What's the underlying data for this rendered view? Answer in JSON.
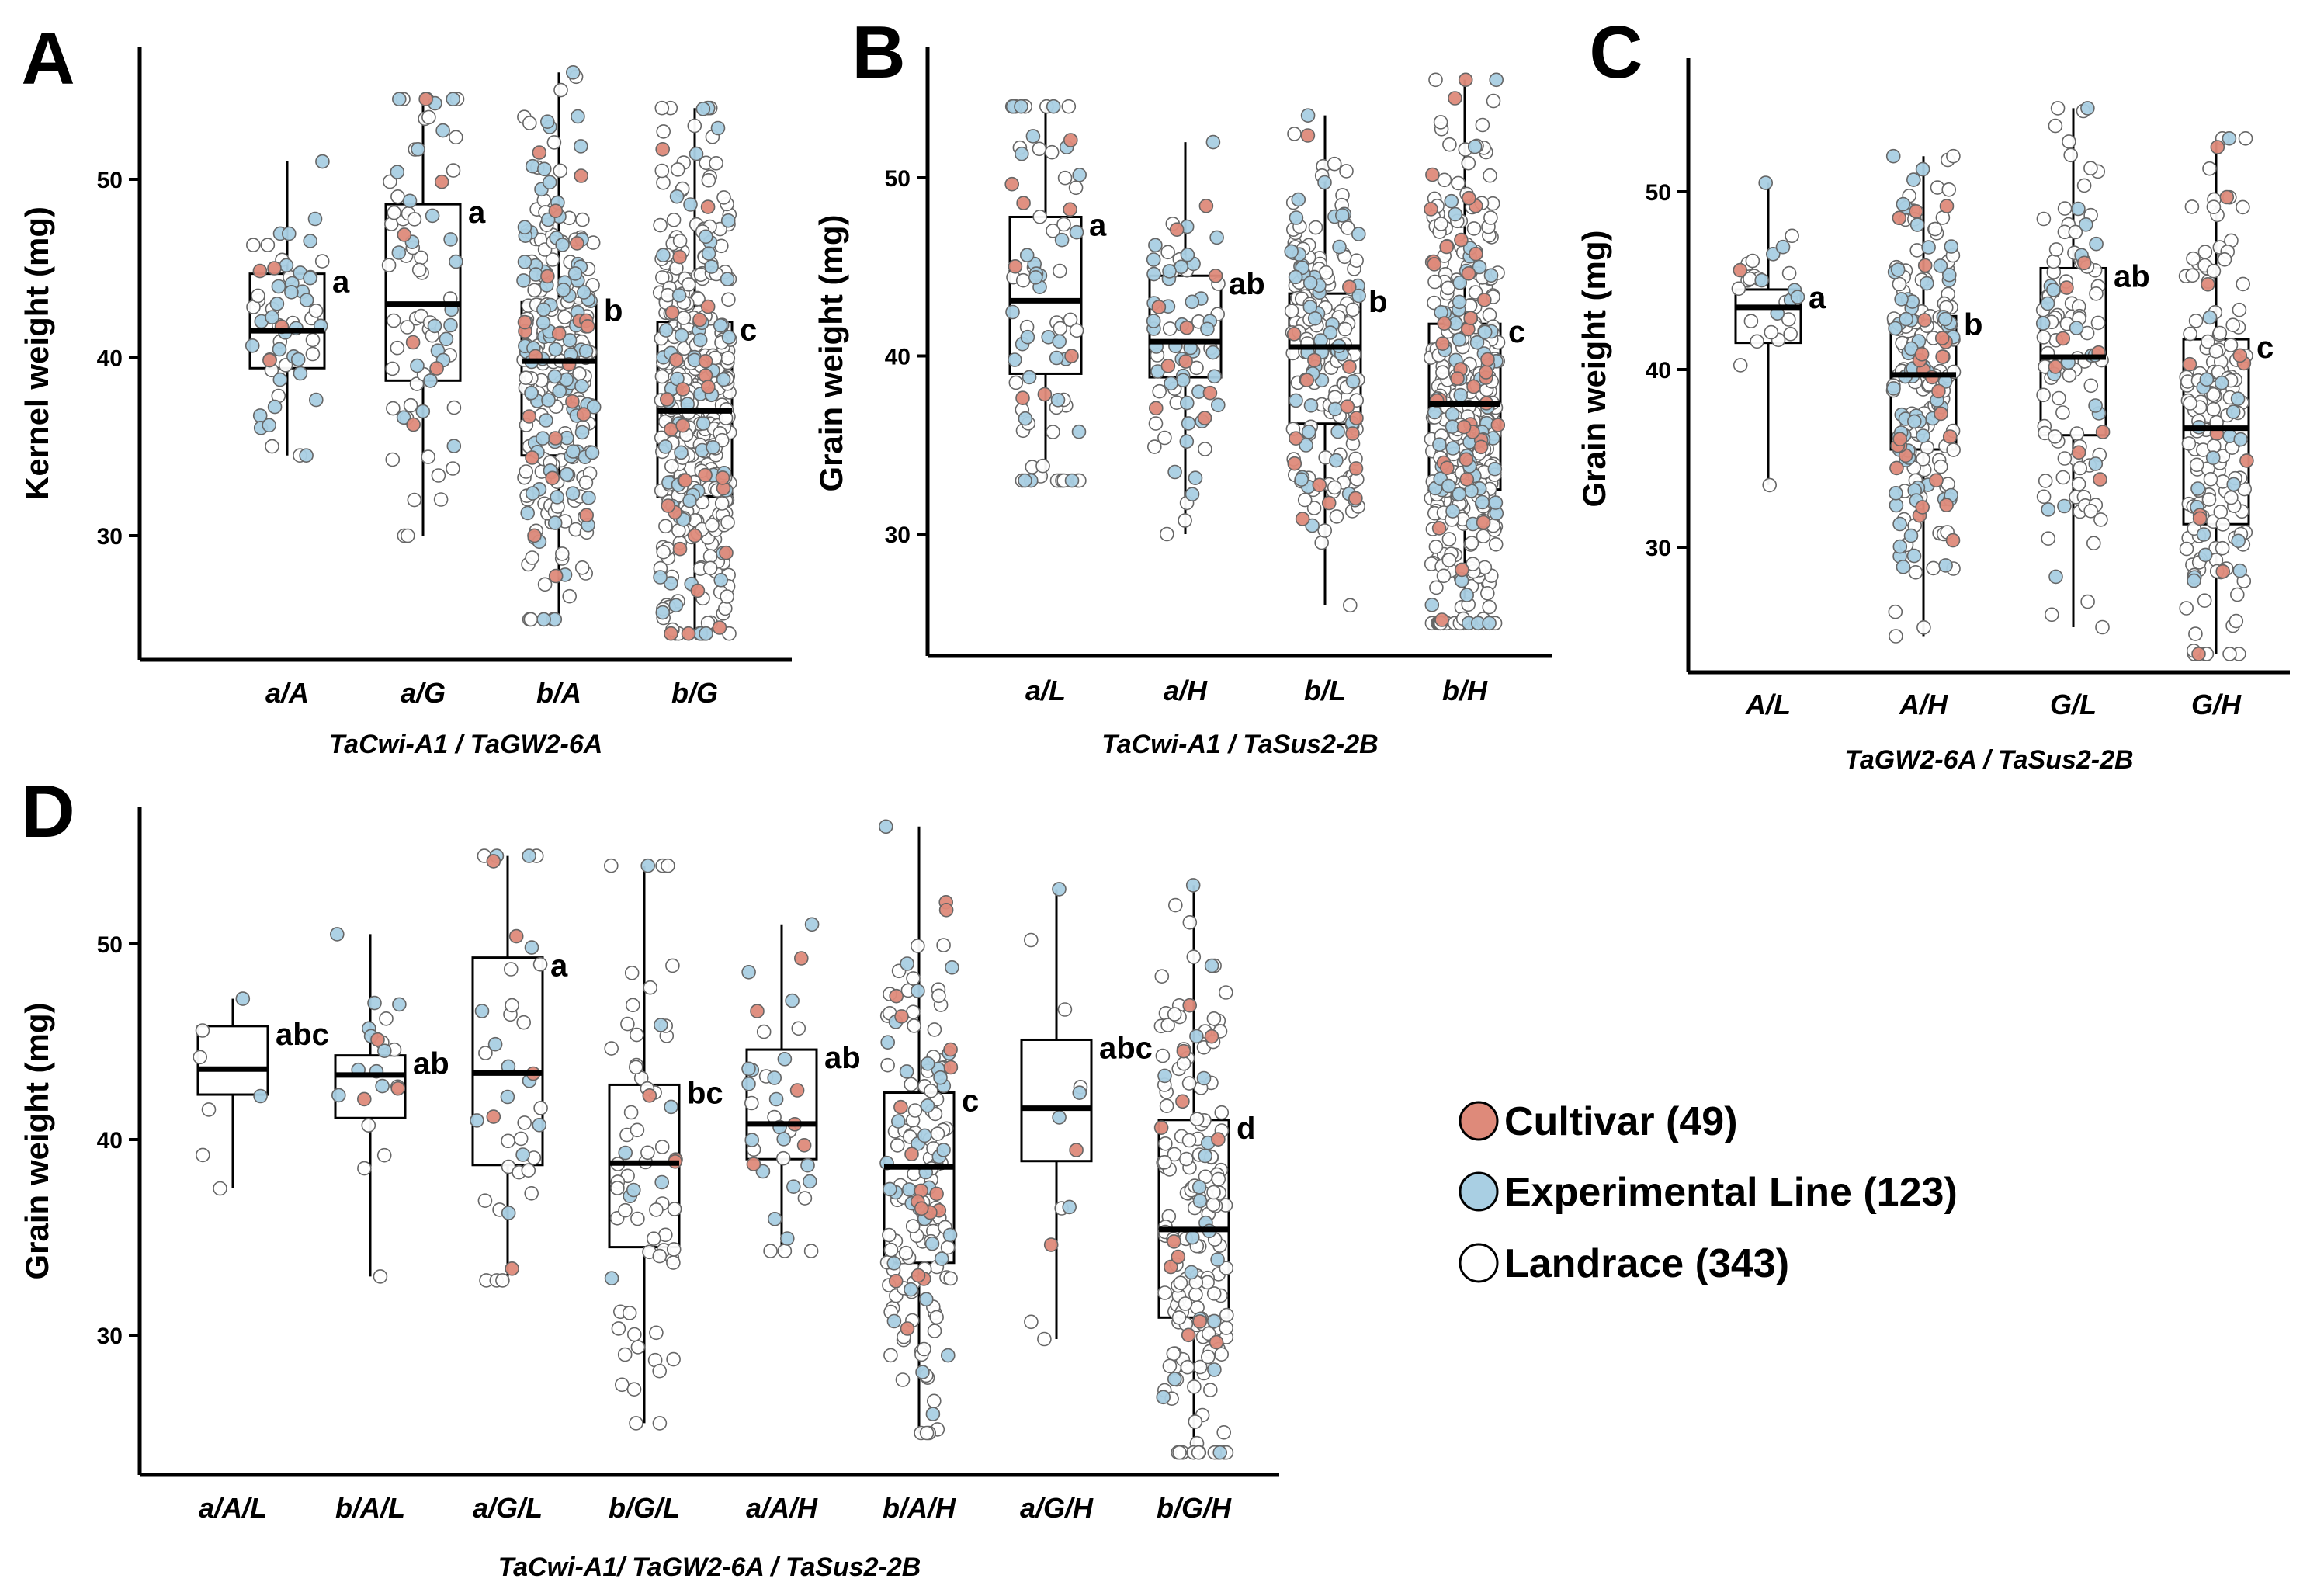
{
  "colors": {
    "cultivar": "#de8a7a",
    "experimental": "#a9cfe3",
    "landrace": "#ffffff",
    "outline": "#000000"
  },
  "legend": {
    "items": [
      {
        "label": "Cultivar (49)",
        "color": "#de8a7a"
      },
      {
        "label": "Experimental Line (123)",
        "color": "#a9cfe3"
      },
      {
        "label": "Landrace (343)",
        "color": "#ffffff"
      }
    ]
  },
  "chart_data": [
    {
      "panel": "A",
      "type": "box",
      "ylabel": "Kernel weight (mg)",
      "xlabel": "TaCwi-A1 / TaGW2-6A",
      "ylim": [
        23,
        57
      ],
      "yticks": [
        30,
        40,
        50
      ],
      "categories": [
        "a/A",
        "a/G",
        "b/A",
        "b/G"
      ],
      "boxes": [
        {
          "q1": 39.4,
          "median": 41.5,
          "q3": 44.7,
          "wmin": 34.5,
          "wmax": 51.0,
          "sig": "a",
          "n": {
            "cultivar": 4,
            "experimental": 32,
            "landrace": 22
          }
        },
        {
          "q1": 38.7,
          "median": 43.0,
          "q3": 48.6,
          "wmin": 30.0,
          "wmax": 54.5,
          "sig": "a",
          "n": {
            "cultivar": 6,
            "experimental": 24,
            "landrace": 45
          }
        },
        {
          "q1": 34.5,
          "median": 39.8,
          "q3": 43.1,
          "wmin": 25.3,
          "wmax": 56.0,
          "sig": "b",
          "n": {
            "cultivar": 22,
            "experimental": 95,
            "landrace": 140
          }
        },
        {
          "q1": 32.2,
          "median": 37.0,
          "q3": 42.0,
          "wmin": 24.5,
          "wmax": 54.0,
          "sig": "c",
          "n": {
            "cultivar": 28,
            "experimental": 60,
            "landrace": 290
          }
        }
      ]
    },
    {
      "panel": "B",
      "type": "box",
      "ylabel": "Grain weight (mg)",
      "xlabel": "TaCwi-A1 / TaSus2-2B",
      "ylim": [
        23,
        57
      ],
      "yticks": [
        30,
        40,
        50
      ],
      "categories": [
        "a/L",
        "a/H",
        "b/L",
        "b/H"
      ],
      "boxes": [
        {
          "q1": 39.0,
          "median": 43.1,
          "q3": 47.8,
          "wmin": 33.0,
          "wmax": 54.0,
          "sig": "a",
          "n": {
            "cultivar": 8,
            "experimental": 30,
            "landrace": 40
          }
        },
        {
          "q1": 38.8,
          "median": 40.8,
          "q3": 44.5,
          "wmin": 30.0,
          "wmax": 52.0,
          "sig": "ab",
          "n": {
            "cultivar": 10,
            "experimental": 40,
            "landrace": 22
          }
        },
        {
          "q1": 36.2,
          "median": 40.5,
          "q3": 43.5,
          "wmin": 26.0,
          "wmax": 53.5,
          "sig": "b",
          "n": {
            "cultivar": 16,
            "experimental": 55,
            "landrace": 120
          }
        },
        {
          "q1": 32.5,
          "median": 37.3,
          "q3": 41.8,
          "wmin": 25.0,
          "wmax": 55.5,
          "sig": "c",
          "n": {
            "cultivar": 40,
            "experimental": 70,
            "landrace": 300
          }
        }
      ]
    },
    {
      "panel": "C",
      "type": "box",
      "ylabel": "Grain weight (mg)",
      "xlabel": "TaGW2-6A / TaSus2-2B",
      "ylim": [
        23,
        57
      ],
      "yticks": [
        30,
        40,
        50
      ],
      "categories": [
        "A/L",
        "A/H",
        "G/L",
        "G/H"
      ],
      "boxes": [
        {
          "q1": 41.5,
          "median": 43.5,
          "q3": 44.5,
          "wmin": 33.5,
          "wmax": 50.5,
          "sig": "a",
          "n": {
            "cultivar": 1,
            "experimental": 8,
            "landrace": 18
          }
        },
        {
          "q1": 35.5,
          "median": 39.7,
          "q3": 43.0,
          "wmin": 25.0,
          "wmax": 52.0,
          "sig": "b",
          "n": {
            "cultivar": 25,
            "experimental": 70,
            "landrace": 110
          }
        },
        {
          "q1": 36.3,
          "median": 40.7,
          "q3": 45.7,
          "wmin": 25.5,
          "wmax": 54.7,
          "sig": "ab",
          "n": {
            "cultivar": 8,
            "experimental": 20,
            "landrace": 85
          }
        },
        {
          "q1": 31.3,
          "median": 36.7,
          "q3": 41.7,
          "wmin": 24.0,
          "wmax": 53.0,
          "sig": "c",
          "n": {
            "cultivar": 12,
            "experimental": 20,
            "landrace": 140
          }
        }
      ]
    },
    {
      "panel": "D",
      "type": "box",
      "ylabel": "Grain weight (mg)",
      "xlabel": "TaCwi-A1/ TaGW2-6A / TaSus2-2B",
      "ylim": [
        23,
        57
      ],
      "yticks": [
        30,
        40,
        50
      ],
      "categories": [
        "a/A/L",
        "b/A/L",
        "a/G/L",
        "b/G/L",
        "a/A/H",
        "b/A/H",
        "a/G/H",
        "b/G/H"
      ],
      "boxes": [
        {
          "q1": 42.3,
          "median": 43.6,
          "q3": 45.8,
          "wmin": 37.5,
          "wmax": 47.2,
          "sig": "abc",
          "n": {
            "cultivar": 0,
            "experimental": 2,
            "landrace": 5
          }
        },
        {
          "q1": 41.1,
          "median": 43.3,
          "q3": 44.3,
          "wmin": 33.0,
          "wmax": 50.5,
          "sig": "ab",
          "n": {
            "cultivar": 3,
            "experimental": 10,
            "landrace": 8
          }
        },
        {
          "q1": 38.7,
          "median": 43.4,
          "q3": 49.3,
          "wmin": 32.8,
          "wmax": 54.5,
          "sig": "a",
          "n": {
            "cultivar": 5,
            "experimental": 12,
            "landrace": 22
          }
        },
        {
          "q1": 34.5,
          "median": 38.8,
          "q3": 42.8,
          "wmin": 25.5,
          "wmax": 54.0,
          "sig": "bc",
          "n": {
            "cultivar": 3,
            "experimental": 8,
            "landrace": 55
          }
        },
        {
          "q1": 39.0,
          "median": 40.8,
          "q3": 44.6,
          "wmin": 34.3,
          "wmax": 51.0,
          "sig": "ab",
          "n": {
            "cultivar": 6,
            "experimental": 18,
            "landrace": 12
          }
        },
        {
          "q1": 33.7,
          "median": 38.6,
          "q3": 42.4,
          "wmin": 25.0,
          "wmax": 56.0,
          "sig": "c",
          "n": {
            "cultivar": 18,
            "experimental": 40,
            "landrace": 100
          }
        },
        {
          "q1": 38.9,
          "median": 41.6,
          "q3": 45.1,
          "wmin": 29.8,
          "wmax": 52.8,
          "sig": "abc",
          "n": {
            "cultivar": 2,
            "experimental": 4,
            "landrace": 6
          }
        },
        {
          "q1": 30.9,
          "median": 35.4,
          "q3": 41.0,
          "wmin": 24.0,
          "wmax": 53.0,
          "sig": "d",
          "n": {
            "cultivar": 12,
            "experimental": 20,
            "landrace": 150
          }
        }
      ]
    }
  ]
}
